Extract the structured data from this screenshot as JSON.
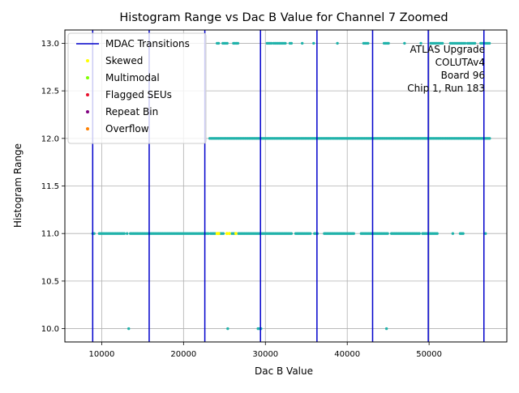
{
  "chart_data": {
    "type": "scatter",
    "title": "Histogram Range vs Dac B Value for Channel 7 Zoomed",
    "xlabel": "Dac B Value",
    "ylabel": "Histogram Range",
    "xlim": [
      5500,
      59500
    ],
    "ylim": [
      9.86,
      13.14
    ],
    "xticks": [
      10000,
      20000,
      30000,
      40000,
      50000
    ],
    "xtick_labels": [
      "10000",
      "20000",
      "30000",
      "40000",
      "50000"
    ],
    "yticks": [
      10.0,
      10.5,
      11.0,
      11.5,
      12.0,
      12.5,
      13.0
    ],
    "ytick_labels": [
      "10.0",
      "10.5",
      "11.0",
      "11.5",
      "12.0",
      "12.5",
      "13.0"
    ],
    "grid": true,
    "legend_placement": "top-left",
    "annotation": [
      "ATLAS Upgrade",
      "COLUTAv4",
      "Board 96",
      "Chip 1, Run 183"
    ],
    "mdac_transitions": [
      8900,
      15800,
      22600,
      29400,
      36300,
      43100,
      49900,
      56700
    ],
    "legend": [
      {
        "label": "MDAC Transitions",
        "kind": "line",
        "color": "#0000cc"
      },
      {
        "label": "Skewed",
        "kind": "marker",
        "color": "#ffff00"
      },
      {
        "label": "Multimodal",
        "kind": "marker",
        "color": "#80ff00"
      },
      {
        "label": "Flagged SEUs",
        "kind": "marker",
        "color": "#e8112d"
      },
      {
        "label": "Repeat Bin",
        "kind": "marker",
        "color": "#800080"
      },
      {
        "label": "Overflow",
        "kind": "marker",
        "color": "#ff8000"
      }
    ],
    "point_color": "#20b2aa",
    "series": [
      {
        "y": 13.0,
        "x_ranges": [
          [
            24100,
            24300
          ],
          [
            24800,
            25500
          ],
          [
            26100,
            26700
          ],
          [
            30200,
            30800
          ],
          [
            31000,
            32500
          ],
          [
            33000,
            33300
          ],
          [
            34500,
            34600
          ],
          [
            35900,
            36000
          ],
          [
            38800,
            38900
          ],
          [
            42000,
            42700
          ],
          [
            44500,
            45100
          ],
          [
            47000,
            47100
          ],
          [
            49000,
            49100
          ],
          [
            50200,
            51800
          ],
          [
            52600,
            54400
          ],
          [
            54700,
            55600
          ],
          [
            56300,
            57500
          ]
        ]
      },
      {
        "y": 12.0,
        "x_ranges": [
          [
            23200,
            57500
          ]
        ]
      },
      {
        "y": 11.0,
        "x_ranges": [
          [
            8900,
            9100
          ],
          [
            9700,
            12800
          ],
          [
            13100,
            13200
          ],
          [
            13500,
            23100
          ],
          [
            23300,
            24000
          ],
          [
            24500,
            25000
          ],
          [
            25900,
            26300
          ],
          [
            26700,
            33300
          ],
          [
            33700,
            35600
          ],
          [
            36000,
            36400
          ],
          [
            37200,
            40900
          ],
          [
            41700,
            45100
          ],
          [
            45400,
            48900
          ],
          [
            49200,
            51100
          ],
          [
            52900,
            53000
          ],
          [
            53800,
            54200
          ],
          [
            56900,
            57000
          ]
        ]
      },
      {
        "y": 10.0,
        "x_ranges": [
          [
            13300,
            13400
          ],
          [
            25400,
            25500
          ],
          [
            29100,
            29500
          ],
          [
            44800,
            44900
          ]
        ]
      }
    ],
    "skewed_points": [
      {
        "x": 24100,
        "y": 11.0
      },
      {
        "x": 24300,
        "y": 11.0
      },
      {
        "x": 25300,
        "y": 11.0
      },
      {
        "x": 25600,
        "y": 11.0
      },
      {
        "x": 26400,
        "y": 11.0
      }
    ]
  }
}
